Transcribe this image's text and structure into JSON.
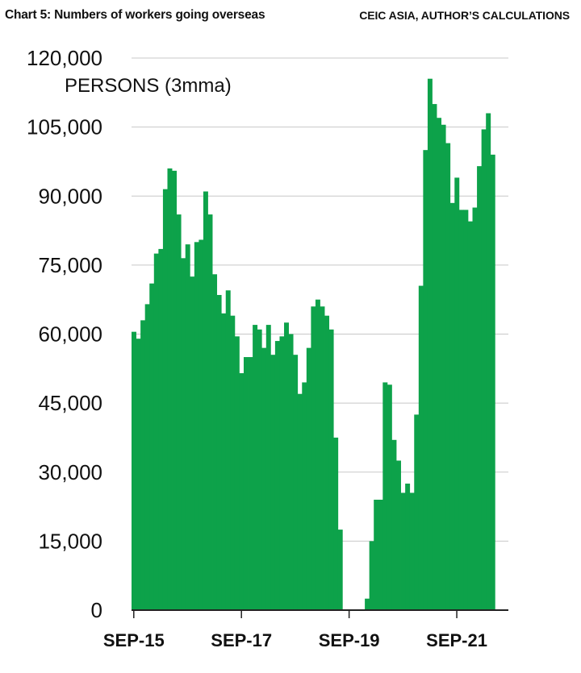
{
  "header": {
    "title": "Chart 5: Numbers of workers going overseas",
    "source": "CEIC ASIA, AUTHOR’S CALCULATIONS"
  },
  "colors": {
    "bar": "#0da24a",
    "grid": "#c8c8c8",
    "axis": "#222222"
  },
  "chart_data": {
    "type": "bar",
    "title": "Chart 5: Numbers of workers going overseas",
    "xlabel": "",
    "ylabel": "PERSONS (3mma)",
    "ylim": [
      0,
      120000
    ],
    "yticks": [
      0,
      15000,
      30000,
      45000,
      60000,
      75000,
      90000,
      105000,
      120000
    ],
    "ytick_labels": [
      "0",
      "15,000",
      "30,000",
      "45,000",
      "60,000",
      "75,000",
      "90,000",
      "105,000",
      "120,000"
    ],
    "xtick_labels": [
      "SEP-15",
      "SEP-17",
      "SEP-19",
      "SEP-21"
    ],
    "xtick_months": [
      "2015-09",
      "2017-09",
      "2019-09",
      "2021-09"
    ],
    "grid": true,
    "months": [
      "2015-09",
      "2015-10",
      "2015-11",
      "2015-12",
      "2016-01",
      "2016-02",
      "2016-03",
      "2016-04",
      "2016-05",
      "2016-06",
      "2016-07",
      "2016-08",
      "2016-09",
      "2016-10",
      "2016-11",
      "2016-12",
      "2017-01",
      "2017-02",
      "2017-03",
      "2017-04",
      "2017-05",
      "2017-06",
      "2017-07",
      "2017-08",
      "2017-09",
      "2017-10",
      "2017-11",
      "2017-12",
      "2018-01",
      "2018-02",
      "2018-03",
      "2018-04",
      "2018-05",
      "2018-06",
      "2018-07",
      "2018-08",
      "2018-09",
      "2018-10",
      "2018-11",
      "2018-12",
      "2019-01",
      "2019-02",
      "2019-03",
      "2019-04",
      "2019-05",
      "2019-06",
      "2019-07",
      "2019-08",
      "2019-09",
      "2019-10",
      "2019-11",
      "2019-12",
      "2020-01",
      "2020-02",
      "2020-03",
      "2020-04",
      "2020-05",
      "2020-06",
      "2020-07",
      "2020-08",
      "2020-09",
      "2020-10",
      "2020-11",
      "2020-12",
      "2021-01",
      "2021-02",
      "2021-03",
      "2021-04",
      "2021-05",
      "2021-06",
      "2021-07",
      "2021-08",
      "2021-09",
      "2021-10",
      "2021-11",
      "2021-12",
      "2022-01",
      "2022-02",
      "2022-03",
      "2022-04",
      "2022-05",
      "2022-06",
      "2022-07",
      "2022-08"
    ],
    "values": [
      60500,
      59000,
      63000,
      66500,
      71000,
      77500,
      78500,
      91500,
      96000,
      95500,
      86000,
      76500,
      79500,
      72500,
      80000,
      80500,
      91000,
      86000,
      73000,
      68500,
      64500,
      69500,
      64000,
      59500,
      51500,
      55000,
      55000,
      62000,
      61000,
      57000,
      62000,
      55500,
      58500,
      59500,
      62500,
      60000,
      55500,
      47000,
      49500,
      57000,
      66000,
      67500,
      66000,
      64000,
      61000,
      37500,
      17500,
      0,
      0,
      0,
      0,
      0,
      2500,
      15000,
      24000,
      24000,
      49500,
      49000,
      37000,
      32500,
      25500,
      27500,
      25500,
      42500,
      70500,
      100000,
      115500,
      110000,
      107000,
      105500,
      101500,
      88500,
      94000,
      87000,
      87000,
      84500,
      87500,
      96500,
      104500,
      108000,
      99000,
      0,
      0,
      0
    ]
  }
}
